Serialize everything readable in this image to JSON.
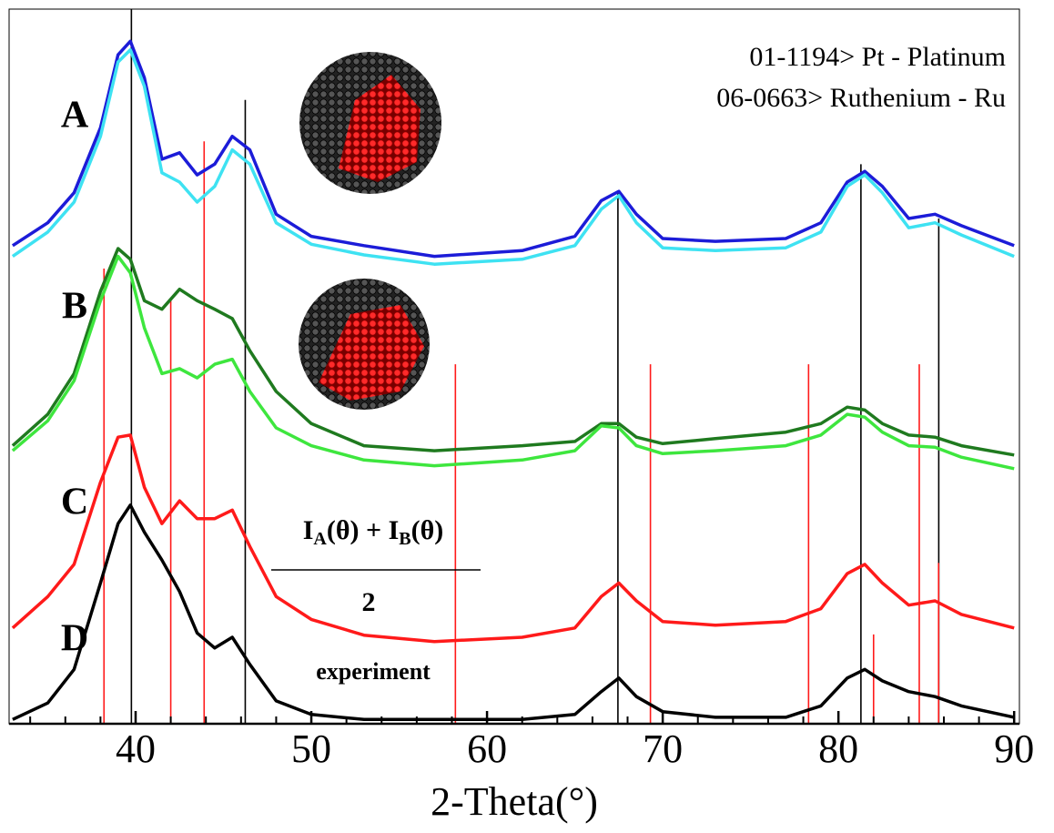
{
  "chart_data": {
    "type": "line",
    "x_label": "2-Theta(°)",
    "xlim": [
      32.8,
      90.3
    ],
    "xticks": [
      40,
      50,
      60,
      70,
      80,
      90
    ],
    "xminorticks": [
      34,
      36,
      38,
      42,
      44,
      46,
      48,
      52,
      54,
      56,
      58,
      62,
      64,
      66,
      68,
      72,
      74,
      76,
      78,
      82,
      84,
      86,
      88
    ],
    "ylim": [
      0,
      100
    ],
    "x": [
      33,
      35,
      36.5,
      38,
      39,
      39.7,
      40.5,
      41.5,
      42.5,
      43.5,
      44.5,
      45.5,
      46.5,
      48,
      50,
      53,
      57,
      62,
      65,
      66.5,
      67.5,
      68.5,
      70,
      73,
      77,
      79,
      80.5,
      81.5,
      82.5,
      84,
      85.5,
      87,
      90
    ],
    "curve_labels": [
      "A",
      "B",
      "C",
      "D"
    ],
    "series": [
      {
        "color": "#1c1cd8",
        "values": [
          66.9,
          70.1,
          74.3,
          83.4,
          93.6,
          95.5,
          90.4,
          79.0,
          79.9,
          76.8,
          78.3,
          82.2,
          80.3,
          71.3,
          68.2,
          66.9,
          65.4,
          66.2,
          68.2,
          73.2,
          74.5,
          71.3,
          67.9,
          67.5,
          67.9,
          70.1,
          75.8,
          77.3,
          75.2,
          70.7,
          71.3,
          69.7,
          66.9
        ]
      },
      {
        "color": "#3ee2f2",
        "values": [
          65.4,
          68.8,
          73.0,
          82.2,
          92.6,
          94.3,
          89.2,
          77.1,
          75.8,
          73.0,
          75.2,
          80.3,
          78.3,
          70.1,
          67.1,
          65.6,
          64.3,
          65.0,
          66.9,
          72.0,
          73.9,
          70.1,
          66.6,
          66.2,
          66.6,
          68.8,
          75.2,
          76.8,
          74.3,
          69.4,
          70.1,
          68.4,
          65.4
        ]
      },
      {
        "color": "#1f7a1f",
        "values": [
          38.9,
          43.3,
          49.0,
          60.5,
          66.5,
          65.0,
          59.2,
          58.0,
          60.8,
          59.2,
          58.0,
          56.7,
          52.2,
          46.5,
          42.0,
          38.9,
          38.2,
          38.9,
          39.5,
          42.0,
          42.0,
          40.1,
          39.2,
          39.9,
          40.8,
          42.0,
          44.3,
          43.9,
          42.0,
          40.4,
          40.1,
          38.9,
          37.6
        ]
      },
      {
        "color": "#3ee63e",
        "values": [
          38.2,
          42.4,
          48.0,
          59.2,
          65.4,
          63.1,
          55.4,
          49.0,
          49.7,
          48.4,
          50.3,
          51.0,
          46.5,
          41.4,
          38.9,
          36.9,
          36.1,
          36.9,
          38.2,
          41.7,
          41.4,
          38.9,
          37.8,
          38.2,
          38.9,
          40.4,
          43.3,
          42.9,
          40.8,
          38.9,
          38.7,
          37.3,
          35.7
        ]
      },
      {
        "color": "#ff1a1a",
        "values": [
          13.4,
          17.8,
          22.3,
          33.8,
          40.1,
          40.4,
          33.1,
          28.0,
          31.2,
          28.7,
          28.7,
          29.9,
          24.8,
          17.8,
          14.6,
          12.4,
          11.5,
          12.1,
          13.4,
          17.8,
          19.7,
          17.2,
          14.3,
          13.8,
          14.3,
          16.1,
          21.0,
          22.3,
          19.7,
          16.6,
          17.2,
          15.3,
          13.4
        ]
      },
      {
        "color": "#000000",
        "values": [
          0.6,
          2.9,
          7.6,
          19.7,
          28.0,
          30.6,
          26.8,
          22.9,
          18.5,
          12.7,
          10.6,
          12.1,
          8.3,
          3.2,
          1.3,
          0.6,
          0.6,
          0.6,
          1.3,
          4.5,
          6.4,
          3.8,
          1.7,
          0.9,
          0.9,
          2.5,
          6.4,
          7.6,
          6.0,
          4.5,
          3.8,
          2.5,
          0.9
        ]
      }
    ],
    "references": [
      {
        "name": "01-1194> Pt - Platinum",
        "color": "#000000",
        "positions": [
          39.76,
          46.24,
          67.45,
          81.28,
          85.71
        ],
        "heights": [
          100,
          87.3,
          74.5,
          78.3,
          70.7
        ]
      },
      {
        "name": "06-0663> Ruthenium - Ru",
        "color": "#ff1a1a",
        "positions": [
          38.2,
          42.0,
          43.9,
          58.2,
          69.3,
          78.3,
          82.0,
          84.6,
          85.7
        ],
        "heights": [
          63.7,
          59.2,
          81.5,
          50.3,
          50.3,
          50.3,
          12.5,
          50.3,
          22.5
        ]
      }
    ],
    "formula": {
      "numerator": [
        "I",
        "A",
        "(θ) + I",
        "B",
        "(θ)"
      ],
      "denominator": "2"
    },
    "annotation": "experiment"
  }
}
